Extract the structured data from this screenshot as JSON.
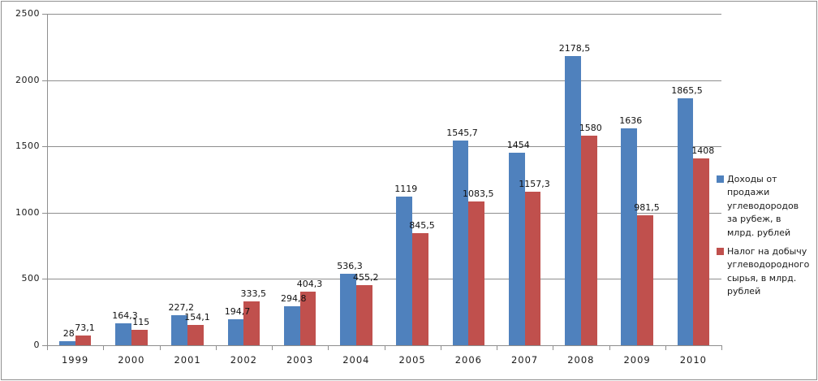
{
  "chart_data": {
    "type": "bar",
    "title": "",
    "categories": [
      "1999",
      "2000",
      "2001",
      "2002",
      "2003",
      "2004",
      "2005",
      "2006",
      "2007",
      "2008",
      "2009",
      "2010"
    ],
    "series": [
      {
        "name": "Доходы от продажи углеводородов за рубеж, в млрд. рублей",
        "color": "#4f81bd",
        "values": [
          28,
          164.3,
          227.2,
          194.7,
          294.8,
          536.3,
          1119,
          1545.7,
          1454,
          2178.5,
          1636,
          1865.5
        ],
        "labels": [
          "28",
          "164,3",
          "227,2",
          "194,7",
          "294,8",
          "536,3",
          "1119",
          "1545,7",
          "1454",
          "2178,5",
          "1636",
          "1865,5"
        ]
      },
      {
        "name": "Налог на добычу углеводородного сырья, в млрд. рублей",
        "color": "#c0504d",
        "values": [
          73.1,
          115,
          154.1,
          333.5,
          404.3,
          455.2,
          845.5,
          1083.5,
          1157.3,
          1580,
          981.5,
          1408
        ],
        "labels": [
          "73,1",
          "115",
          "154,1",
          "333,5",
          "404,3",
          "455,2",
          "845,5",
          "1083,5",
          "1157,3",
          "1580",
          "981,5",
          "1408"
        ]
      }
    ],
    "ylim": [
      0,
      2500
    ],
    "ytick_step": 500,
    "yticks": [
      "0",
      "500",
      "1000",
      "1500",
      "2000",
      "2500"
    ],
    "grid": true,
    "legend_position": "right",
    "value_decimal_separator": ","
  },
  "colors": {
    "series1": "#4f81bd",
    "series2": "#c0504d",
    "gridline": "#8e8e8e",
    "frame_border": "#8f8f8f",
    "text": "#1a1a1a"
  }
}
